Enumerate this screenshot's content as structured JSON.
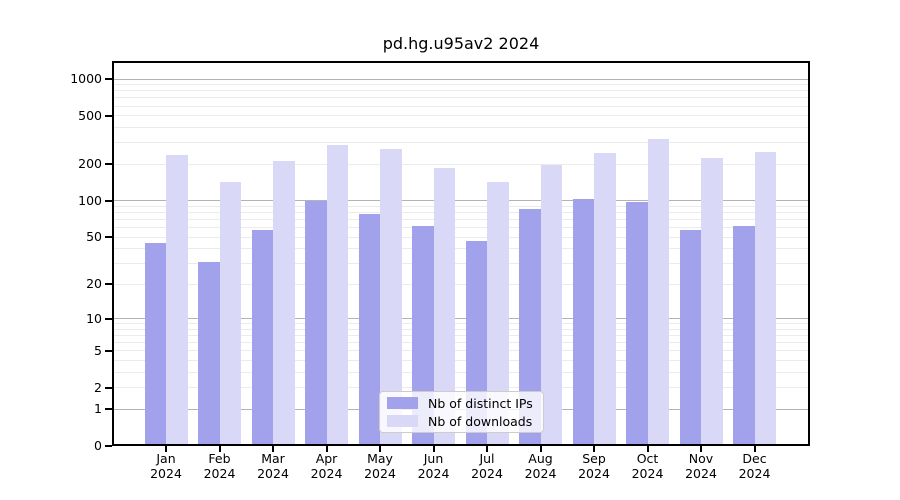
{
  "title": "pd.hg.u95av2 2024",
  "chart_data": {
    "type": "bar",
    "title": "pd.hg.u95av2 2024",
    "categories": [
      "Jan",
      "Feb",
      "Mar",
      "Apr",
      "May",
      "Jun",
      "Jul",
      "Aug",
      "Sep",
      "Oct",
      "Nov",
      "Dec"
    ],
    "year_label": "2024",
    "series": [
      {
        "name": "Nb of distinct IPs",
        "color": "#a2a2ec",
        "values": [
          45,
          31,
          57,
          100,
          78,
          62,
          46,
          85,
          103,
          97,
          57,
          62
        ]
      },
      {
        "name": "Nb of downloads",
        "color": "#d9d9f7",
        "values": [
          240,
          143,
          213,
          289,
          266,
          185,
          143,
          199,
          246,
          321,
          224,
          251
        ]
      }
    ],
    "y_scale": "log1p",
    "y_ticks": [
      0,
      1,
      2,
      5,
      10,
      20,
      50,
      100,
      200,
      500,
      1000
    ],
    "y_minor_gridlines": [
      2,
      3,
      4,
      5,
      6,
      7,
      8,
      9,
      20,
      30,
      40,
      50,
      60,
      70,
      80,
      90,
      200,
      300,
      400,
      500,
      600,
      700,
      800,
      900
    ],
    "y_major_gridlines": [
      1,
      10,
      100,
      1000
    ],
    "ylim": [
      0,
      1200
    ],
    "grid": true,
    "legend_position": "bottom-center",
    "xlabel": "",
    "ylabel": ""
  },
  "colors": {
    "bar_distinct_ips": "#a2a2ec",
    "bar_downloads": "#d9d9f7",
    "grid_major": "#b3b3b3",
    "grid_minor": "#ebebeb",
    "axis": "#000000",
    "background": "#ffffff",
    "legend_border": "#cccccc"
  }
}
